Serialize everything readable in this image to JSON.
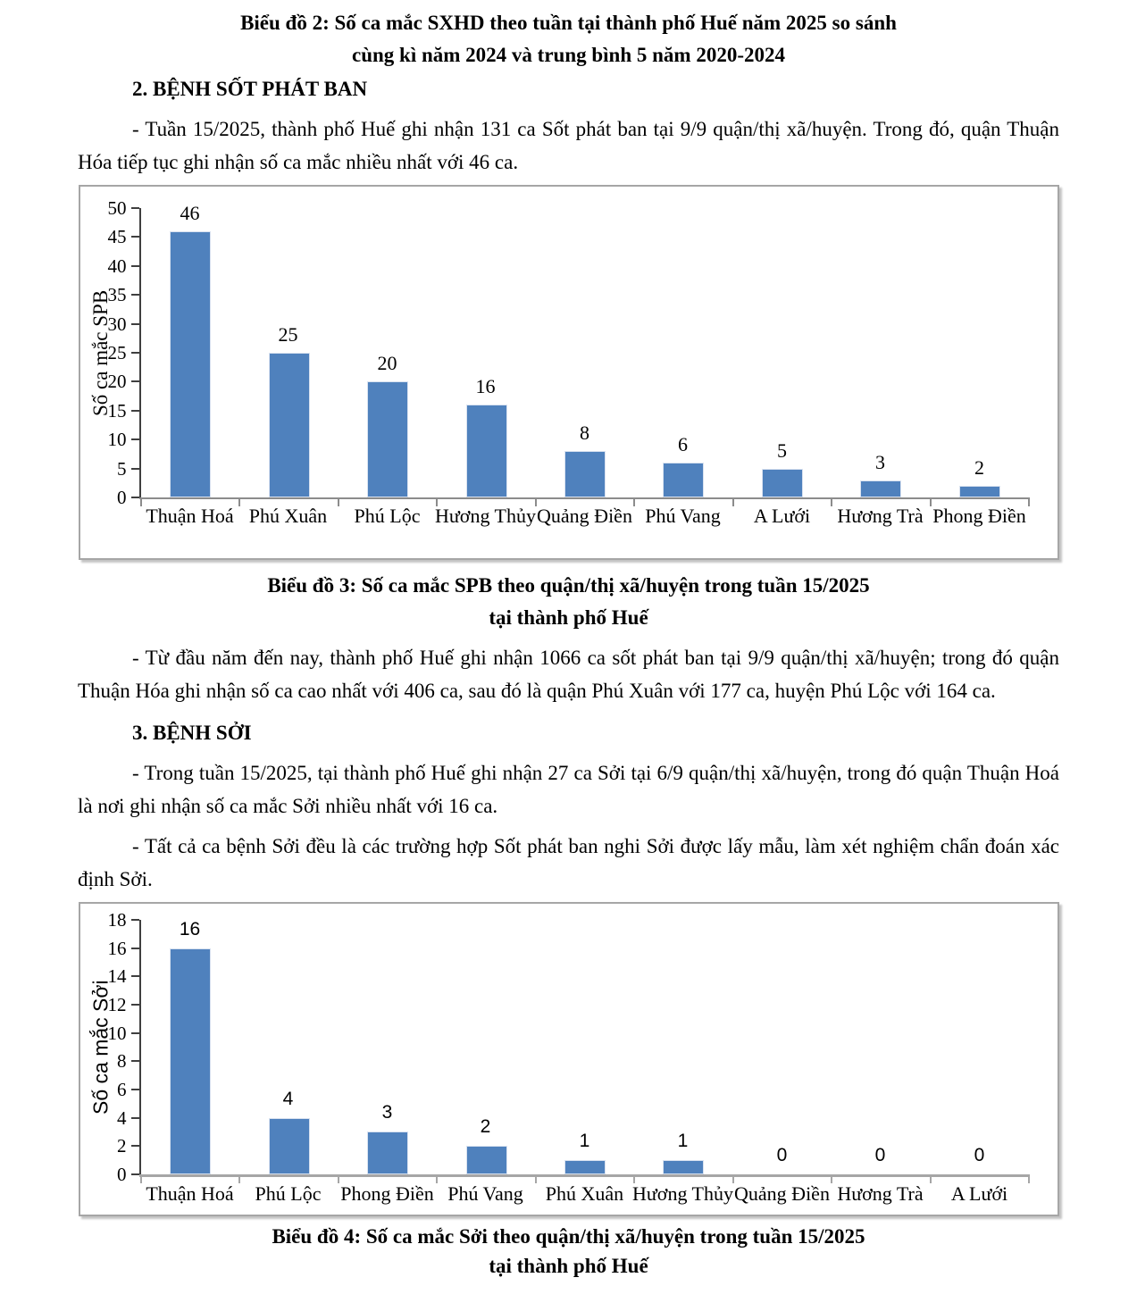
{
  "page": {
    "title_line1": "Biểu đồ 2: Số ca mắc SXHD theo tuần tại thành phố Huế năm 2025 so sánh",
    "title_line2": "cùng kì năm 2024 và trung bình 5 năm 2020-2024",
    "section2_heading": "2. BỆNH SỐT PHÁT BAN",
    "para_spb_week": "- Tuần 15/2025, thành phố Huế ghi nhận 131 ca Sốt phát ban tại 9/9 quận/thị xã/huyện. Trong đó, quận Thuận Hóa tiếp tục ghi nhận số ca mắc nhiều nhất với 46 ca.",
    "para_spb_ytd": "- Từ đầu năm đến nay, thành phố Huế ghi nhận 1066 ca sốt phát ban tại 9/9 quận/thị xã/huyện; trong đó quận Thuận Hóa ghi nhận số ca cao nhất với 406 ca, sau đó là quận Phú Xuân với 177 ca, huyện Phú Lộc với 164 ca.",
    "section3_heading": "3. BỆNH SỞI",
    "para_soi_week": "- Trong tuần 15/2025, tại thành phố Huế ghi nhận 27 ca Sởi tại 6/9 quận/thị xã/huyện, trong đó quận Thuận Hoá là nơi ghi nhận số ca mắc Sởi nhiều nhất với 16 ca.",
    "para_soi_note": "- Tất cả ca bệnh Sởi đều là các trường hợp Sốt phát ban nghi Sởi được lấy mẫu, làm xét nghiệm chẩn đoán xác định Sởi."
  },
  "chart_data": [
    {
      "type": "bar",
      "title": "Biểu đồ 3: Số ca mắc SPB theo quận/thị xã/huyện trong tuần 15/2025 tại thành phố Huế",
      "title_line1": "Biểu đồ 3: Số ca mắc SPB theo quận/thị xã/huyện trong tuần 15/2025",
      "title_line2": "tại thành phố Huế",
      "categories": [
        "Thuận Hoá",
        "Phú Xuân",
        "Phú Lộc",
        "Hương Thủy",
        "Quảng Điền",
        "Phú Vang",
        "A Lưới",
        "Hương Trà",
        "Phong Điền"
      ],
      "values": [
        46,
        25,
        20,
        16,
        8,
        6,
        5,
        3,
        2
      ],
      "xlabel": "",
      "ylabel": "Số ca mắc SPB",
      "ylim": [
        0,
        50
      ],
      "ytick_step": 5,
      "data_labels": true,
      "grid": false,
      "legend": "none",
      "bar_color": "#4f81bd",
      "bar_edge_color": "#d9e2f0"
    },
    {
      "type": "bar",
      "title": "Biểu đồ 4: Số ca mắc Sởi theo quận/thị xã/huyện trong tuần 15/2025 tại thành phố Huế",
      "title_line1": "Biểu đồ 4: Số ca mắc Sởi theo quận/thị xã/huyện trong tuần 15/2025",
      "title_line2": "tại thành phố Huế",
      "categories": [
        "Thuận Hoá",
        "Phú Lộc",
        "Phong Điền",
        "Phú Vang",
        "Phú Xuân",
        "Hương Thủy",
        "Quảng Điền",
        "Hương Trà",
        "A Lưới"
      ],
      "values": [
        16,
        4,
        3,
        2,
        1,
        1,
        0,
        0,
        0
      ],
      "xlabel": "",
      "ylabel": "Số ca mắc Sởi",
      "ylim": [
        0,
        18
      ],
      "ytick_step": 2,
      "data_labels": true,
      "grid": false,
      "legend": "none",
      "bar_color": "#4f81bd",
      "bar_edge_color": "#d9e2f0"
    }
  ]
}
